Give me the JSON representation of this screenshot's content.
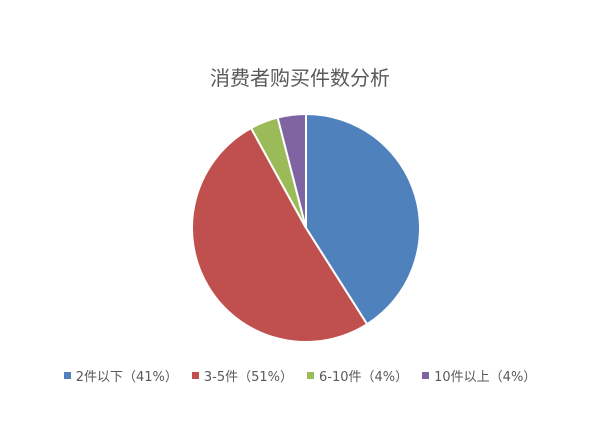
{
  "chart_data": {
    "type": "pie",
    "title": "消费者购买件数分析",
    "start_angle": "12 o'clock, clockwise",
    "legend_position": "bottom",
    "slices": [
      {
        "label": "2件以下（41%）",
        "category": "2件以下",
        "value": 41,
        "color": "#4F81BD"
      },
      {
        "label": "3-5件（51%）",
        "category": "3-5件",
        "value": 51,
        "color": "#C0504D"
      },
      {
        "label": "6-10件（4%）",
        "category": "6-10件",
        "value": 4,
        "color": "#9BBB59"
      },
      {
        "label": "10件以上（4%）",
        "category": "10件以上",
        "value": 4,
        "color": "#8064A2"
      }
    ]
  }
}
